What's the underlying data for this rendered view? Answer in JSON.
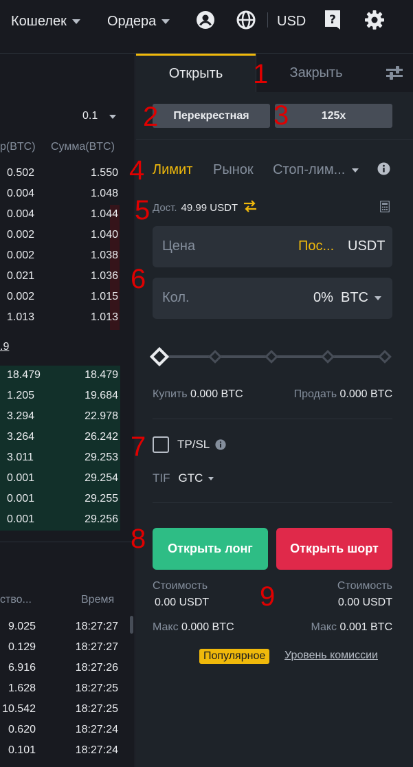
{
  "topbar": {
    "wallet_label": "Кошелек",
    "orders_label": "Ордера",
    "currency_label": "USD",
    "icons": [
      "user-icon",
      "globe-icon",
      "help-icon",
      "gear-icon"
    ]
  },
  "orderbook": {
    "precision": "0.1",
    "col_amount_partial": "р(BTC)",
    "col_total": "Сумма(BTC)",
    "asks": [
      {
        "amount": "0.502",
        "total": "1.550"
      },
      {
        "amount": "0.004",
        "total": "1.048"
      },
      {
        "amount": "0.004",
        "total": "1.044"
      },
      {
        "amount": "0.002",
        "total": "1.040"
      },
      {
        "amount": "0.002",
        "total": "1.038"
      },
      {
        "amount": "0.021",
        "total": "1.036"
      },
      {
        "amount": "0.002",
        "total": "1.015"
      },
      {
        "amount": "1.013",
        "total": "1.013"
      }
    ],
    "mid_price_partial": ".9",
    "bids": [
      {
        "amount": "18.479",
        "total": "18.479"
      },
      {
        "amount": "1.205",
        "total": "19.684"
      },
      {
        "amount": "3.294",
        "total": "22.978"
      },
      {
        "amount": "3.264",
        "total": "26.242"
      },
      {
        "amount": "3.011",
        "total": "29.253"
      },
      {
        "amount": "0.001",
        "total": "29.254"
      },
      {
        "amount": "0.001",
        "total": "29.255"
      },
      {
        "amount": "0.001",
        "total": "29.256"
      }
    ]
  },
  "trades": {
    "col_qty_partial": "ство...",
    "col_time": "Время",
    "rows": [
      {
        "qty": "9.025",
        "time": "18:27:27"
      },
      {
        "qty": "0.129",
        "time": "18:27:27"
      },
      {
        "qty": "6.916",
        "time": "18:27:26"
      },
      {
        "qty": "1.628",
        "time": "18:27:25"
      },
      {
        "qty": "10.542",
        "time": "18:27:25"
      },
      {
        "qty": "0.620",
        "time": "18:27:24"
      },
      {
        "qty": "0.101",
        "time": "18:27:24"
      }
    ]
  },
  "panel": {
    "tab_open": "Открыть",
    "tab_close": "Закрыть",
    "margin_mode": "Перекрестная",
    "leverage": "125x",
    "order_types": {
      "limit": "Лимит",
      "market": "Рынок",
      "stop_limit": "Стоп-лим..."
    },
    "available_label": "Дост.",
    "available_value": "49.99 USDT",
    "price_placeholder": "Цена",
    "price_last": "Пос...",
    "price_unit": "USDT",
    "qty_placeholder": "Кол.",
    "qty_percent": "0%",
    "qty_unit": "BTC",
    "slider_percent": 0,
    "buy_label": "Купить",
    "buy_value": "0.000 BTC",
    "sell_label": "Продать",
    "sell_value": "0.000 BTC",
    "tpsl_label": "TP/SL",
    "tif_label": "TIF",
    "tif_value": "GTC",
    "long_button": "Открыть лонг",
    "short_button": "Открыть шорт",
    "cost_label_left": "Стоимость",
    "cost_value_left": "0.00 USDT",
    "cost_label_right": "Стоимость",
    "cost_value_right": "0.00 USDT",
    "max_label_left": "Макс",
    "max_value_left": "0.000 BTC",
    "max_label_right": "Макс",
    "max_value_right": "0.001 BTC",
    "popular_badge": "Популярное",
    "fee_link": "Уровень комиссии"
  },
  "annotations": [
    "1",
    "2",
    "3",
    "4",
    "5",
    "6",
    "7",
    "8",
    "9"
  ],
  "colors": {
    "accent": "#f0b90b",
    "long": "#0ecb81",
    "short": "#f6465d",
    "bg": "#181a20",
    "panel": "#1e2329"
  }
}
